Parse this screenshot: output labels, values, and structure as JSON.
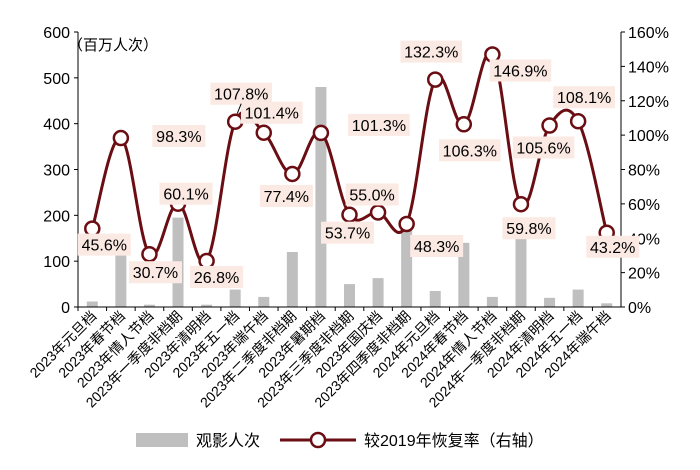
{
  "chart_data": {
    "type": "bar+line",
    "y_left_unit_label": "（百万人次）",
    "y_left_ticks": [
      "0",
      "100",
      "200",
      "300",
      "400",
      "500",
      "600"
    ],
    "y_right_ticks": [
      "0%",
      "20%",
      "40%",
      "60%",
      "80%",
      "100%",
      "120%",
      "140%",
      "160%"
    ],
    "y_left_range": [
      0,
      600
    ],
    "y_right_range": [
      0,
      160
    ],
    "categories": [
      "2023年元旦档",
      "2023年春节档",
      "2023年情人节档",
      "2023年一季度非档期",
      "2023年清明档",
      "2023年五一档",
      "2023年端午档",
      "2023年二季度非档期",
      "2023年暑期档",
      "2023年三季度非档期",
      "2023年国庆档",
      "2023年四季度非档期",
      "2024年元旦档",
      "2024年春节档",
      "2024年情人节档",
      "2024年一季度非档期",
      "2024年清明档",
      "2024年五一档",
      "2024年端午档"
    ],
    "series": [
      {
        "name": "观影人次",
        "type": "bar",
        "axis": "left",
        "color": "#bfbfbf",
        "values": [
          12,
          125,
          5,
          195,
          5,
          38,
          22,
          120,
          480,
          50,
          63,
          170,
          35,
          140,
          22,
          195,
          20,
          38,
          8
        ]
      },
      {
        "name": "较2019年恢复率（右轴）",
        "type": "line",
        "axis": "right",
        "color": "#6b0e13",
        "values": [
          45.6,
          98.3,
          30.7,
          60.1,
          26.8,
          107.8,
          101.4,
          77.4,
          101.3,
          53.7,
          55.0,
          48.3,
          132.3,
          106.3,
          146.9,
          59.8,
          105.6,
          108.1,
          43.2
        ],
        "labels": [
          "45.6%",
          "98.3%",
          "30.7%",
          "60.1%",
          "26.8%",
          "107.8%",
          "101.4%",
          "77.4%",
          "101.3%",
          "53.7%",
          "55.0%",
          "48.3%",
          "132.3%",
          "106.3%",
          "146.9%",
          "59.8%",
          "105.6%",
          "108.1%",
          "43.2%"
        ]
      }
    ],
    "grid": false,
    "legend_position": "bottom"
  }
}
